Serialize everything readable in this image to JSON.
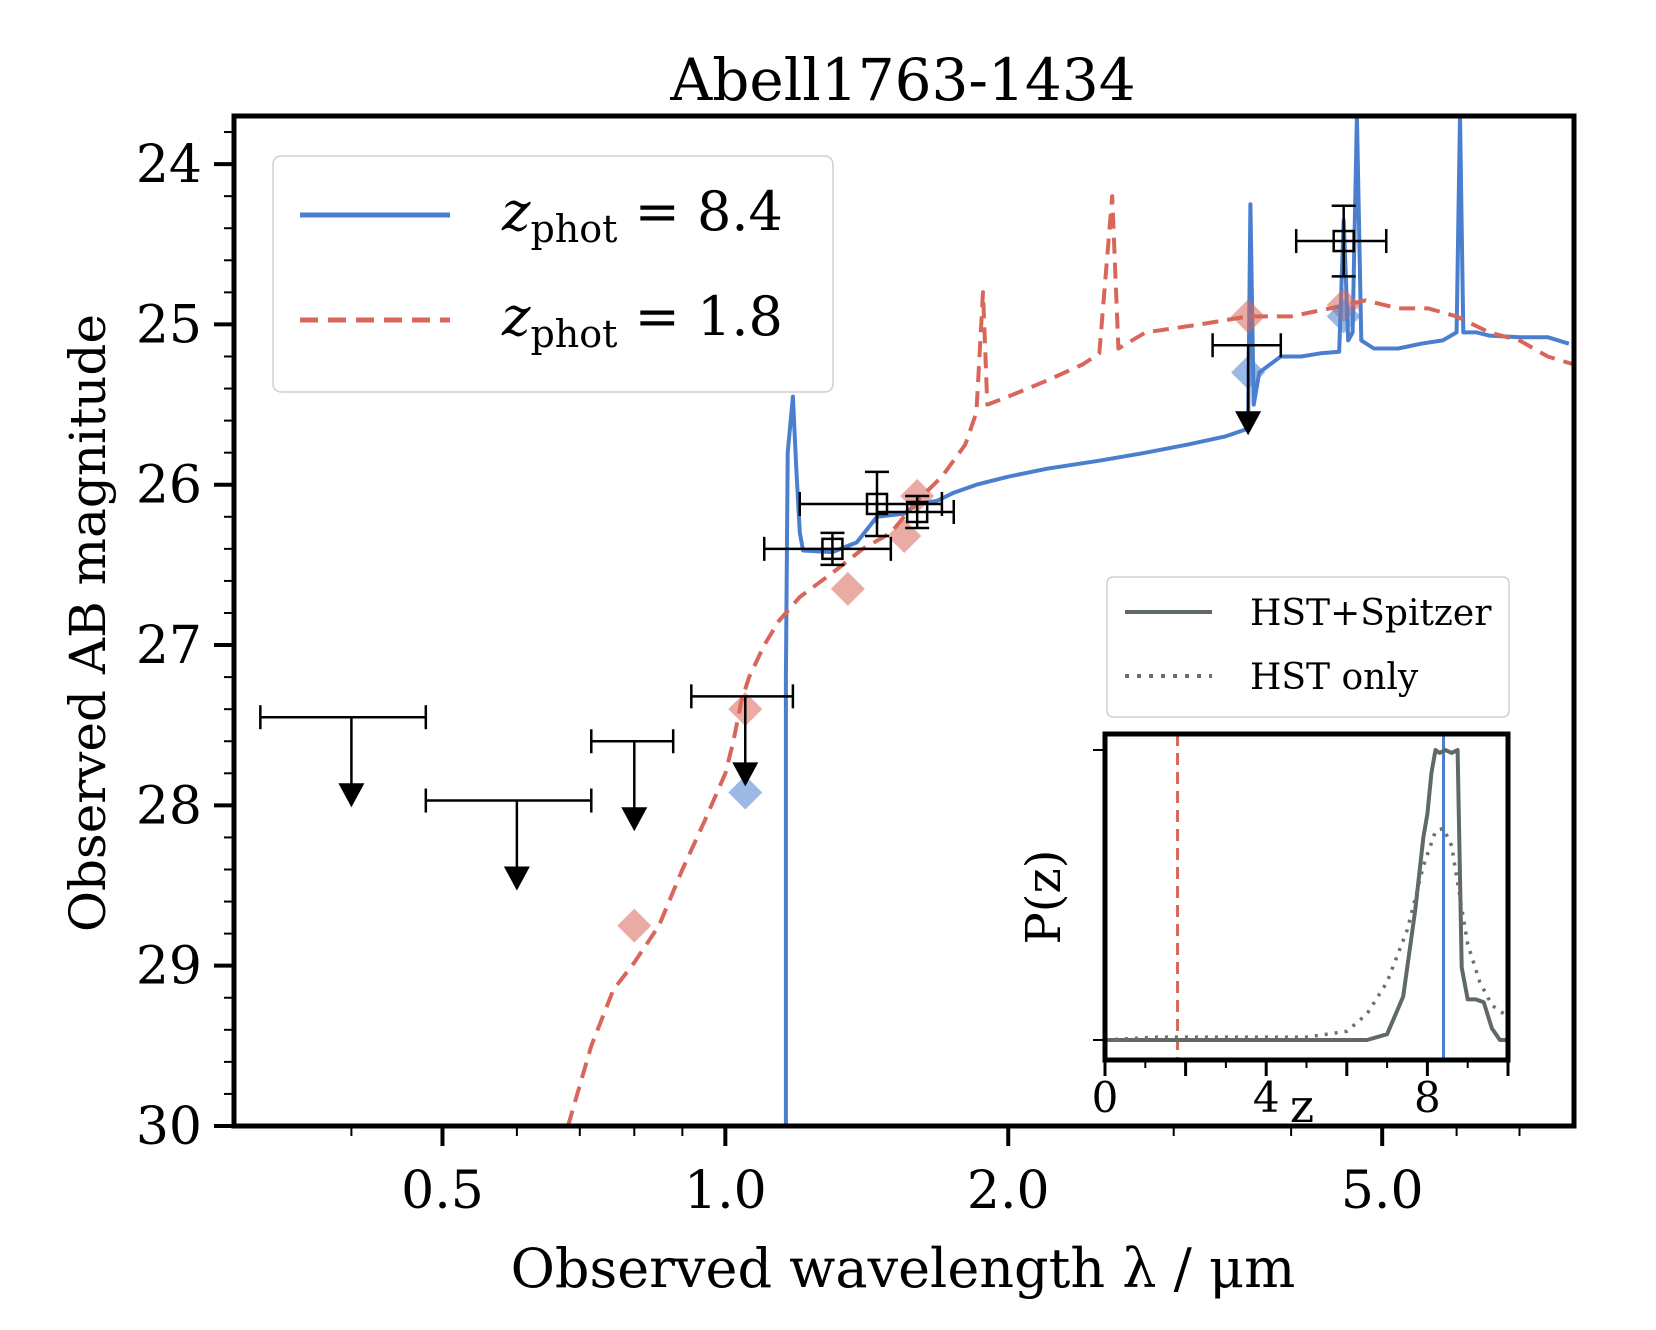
{
  "chart_data": [
    {
      "type": "line",
      "title": "Abell1763-1434",
      "xlabel": "Observed wavelength λ / μm",
      "ylabel": "Observed AB magnitude",
      "x_scale": "log",
      "xlim": [
        0.3,
        8.0
      ],
      "ylim": [
        30,
        23.7
      ],
      "y_inverted": true,
      "x_ticks": [
        "0.5",
        "1.0",
        "2.0",
        "5.0"
      ],
      "y_ticks": [
        "24",
        "25",
        "26",
        "27",
        "28",
        "29",
        "30"
      ],
      "legend": {
        "placement": "top-left",
        "entries": [
          {
            "prefix": "z",
            "sub": "phot",
            "rest": " = 8.4"
          },
          {
            "prefix": "z",
            "sub": "phot",
            "rest": " = 1.8"
          }
        ]
      },
      "series": [
        {
          "color": "#4a7fcf",
          "style": "solid",
          "points": [
            [
              1.16,
              30.0
            ],
            [
              1.16,
              27.2
            ],
            [
              1.165,
              25.8
            ],
            [
              1.18,
              25.45
            ],
            [
              1.19,
              25.9
            ],
            [
              1.2,
              26.3
            ],
            [
              1.21,
              26.41
            ],
            [
              1.3,
              26.42
            ],
            [
              1.38,
              26.36
            ],
            [
              1.45,
              26.2
            ],
            [
              1.55,
              26.18
            ],
            [
              1.6,
              26.12
            ],
            [
              1.68,
              26.1
            ],
            [
              1.75,
              26.05
            ],
            [
              1.85,
              26.0
            ],
            [
              2.0,
              25.95
            ],
            [
              2.2,
              25.9
            ],
            [
              2.5,
              25.85
            ],
            [
              2.8,
              25.8
            ],
            [
              3.1,
              25.75
            ],
            [
              3.4,
              25.7
            ],
            [
              3.6,
              25.65
            ],
            [
              3.62,
              24.25
            ],
            [
              3.65,
              25.5
            ],
            [
              3.7,
              25.3
            ],
            [
              3.9,
              25.2
            ],
            [
              4.1,
              25.2
            ],
            [
              4.3,
              25.18
            ],
            [
              4.5,
              25.17
            ],
            [
              4.55,
              24.35
            ],
            [
              4.6,
              25.1
            ],
            [
              4.65,
              25.05
            ],
            [
              4.7,
              23.7
            ],
            [
              4.75,
              25.1
            ],
            [
              4.9,
              25.15
            ],
            [
              5.2,
              25.15
            ],
            [
              5.5,
              25.12
            ],
            [
              5.8,
              25.1
            ],
            [
              6.0,
              25.05
            ],
            [
              6.05,
              23.7
            ],
            [
              6.1,
              25.05
            ],
            [
              6.3,
              25.05
            ],
            [
              6.5,
              25.07
            ],
            [
              7.0,
              25.08
            ],
            [
              7.5,
              25.08
            ],
            [
              7.9,
              25.12
            ]
          ]
        },
        {
          "color": "#d9665a",
          "style": "dashed",
          "points": [
            [
              0.68,
              30.0
            ],
            [
              0.72,
              29.5
            ],
            [
              0.76,
              29.15
            ],
            [
              0.8,
              28.98
            ],
            [
              0.85,
              28.75
            ],
            [
              0.9,
              28.4
            ],
            [
              0.95,
              28.1
            ],
            [
              1.0,
              27.8
            ],
            [
              1.02,
              27.6
            ],
            [
              1.04,
              27.35
            ],
            [
              1.06,
              27.2
            ],
            [
              1.1,
              27.0
            ],
            [
              1.14,
              26.85
            ],
            [
              1.2,
              26.7
            ],
            [
              1.3,
              26.55
            ],
            [
              1.4,
              26.4
            ],
            [
              1.5,
              26.3
            ],
            [
              1.6,
              26.1
            ],
            [
              1.7,
              25.95
            ],
            [
              1.8,
              25.75
            ],
            [
              1.85,
              25.55
            ],
            [
              1.88,
              24.8
            ],
            [
              1.9,
              25.5
            ],
            [
              2.0,
              25.45
            ],
            [
              2.2,
              25.35
            ],
            [
              2.4,
              25.25
            ],
            [
              2.5,
              25.18
            ],
            [
              2.58,
              24.2
            ],
            [
              2.62,
              25.15
            ],
            [
              2.8,
              25.05
            ],
            [
              3.2,
              25.0
            ],
            [
              3.6,
              24.95
            ],
            [
              4.0,
              24.95
            ],
            [
              4.4,
              24.9
            ],
            [
              4.8,
              24.85
            ],
            [
              5.2,
              24.9
            ],
            [
              5.6,
              24.9
            ],
            [
              6.0,
              24.95
            ],
            [
              6.5,
              25.05
            ],
            [
              7.0,
              25.1
            ],
            [
              7.5,
              25.2
            ],
            [
              8.0,
              25.25
            ]
          ]
        }
      ],
      "observations": [
        {
          "x": 1.3,
          "y": 26.4,
          "xerr": 0.2,
          "yerr": 0.1
        },
        {
          "x": 1.45,
          "y": 26.12,
          "xerr": 0.25,
          "yerr": 0.2
        },
        {
          "x": 1.6,
          "y": 26.17,
          "xerr": 0.15,
          "yerr": 0.1
        },
        {
          "x": 4.55,
          "y": 24.48,
          "xerr": 0.5,
          "yerr": 0.22
        }
      ],
      "upper_limits": [
        {
          "x": 0.4,
          "y": 27.45,
          "xerr": 0.08
        },
        {
          "x": 0.6,
          "y": 27.97,
          "xerr": 0.12
        },
        {
          "x": 0.8,
          "y": 27.6,
          "xerr": 0.08
        },
        {
          "x": 1.05,
          "y": 27.32,
          "xerr": 0.13
        },
        {
          "x": 3.6,
          "y": 25.13,
          "xerr": 0.3
        }
      ],
      "model_points_8_4": [
        [
          1.05,
          27.92
        ],
        [
          3.6,
          25.3
        ],
        [
          4.55,
          24.95
        ]
      ],
      "model_points_1_8": [
        [
          0.8,
          28.75
        ],
        [
          1.05,
          27.4
        ],
        [
          1.35,
          26.65
        ],
        [
          1.55,
          26.32
        ],
        [
          1.6,
          26.07
        ],
        [
          3.6,
          24.95
        ],
        [
          4.55,
          24.88
        ]
      ]
    },
    {
      "type": "line",
      "title": "",
      "xlabel": "z",
      "ylabel": "P(z)",
      "xlim": [
        0,
        10
      ],
      "x_ticks": [
        "0",
        "4",
        "8"
      ],
      "legend": {
        "placement": "above",
        "entries": [
          "HST+Spitzer",
          "HST only"
        ]
      },
      "markers": [
        {
          "label": "z = 8.4",
          "x": 8.4,
          "color": "#4a7fcf"
        },
        {
          "label": "z = 1.8",
          "x": 1.8,
          "color": "#d9665a"
        }
      ],
      "series": [
        {
          "name": "HST+Spitzer",
          "color": "#5f6a68",
          "style": "solid",
          "points": [
            [
              0,
              0.0
            ],
            [
              6.5,
              0.0
            ],
            [
              7.0,
              0.02
            ],
            [
              7.4,
              0.15
            ],
            [
              7.7,
              0.45
            ],
            [
              7.9,
              0.7
            ],
            [
              8.0,
              0.78
            ],
            [
              8.1,
              0.92
            ],
            [
              8.2,
              1.0
            ],
            [
              8.3,
              0.99
            ],
            [
              8.45,
              1.0
            ],
            [
              8.6,
              0.99
            ],
            [
              8.75,
              1.0
            ],
            [
              8.85,
              0.25
            ],
            [
              9.0,
              0.14
            ],
            [
              9.2,
              0.14
            ],
            [
              9.4,
              0.13
            ],
            [
              9.6,
              0.04
            ],
            [
              9.8,
              0.0
            ],
            [
              10.0,
              0.0
            ]
          ]
        },
        {
          "name": "HST only",
          "color": "#6e6e6e",
          "style": "dotted",
          "points": [
            [
              0,
              0.0
            ],
            [
              1.3,
              0.01
            ],
            [
              5.0,
              0.01
            ],
            [
              6.0,
              0.03
            ],
            [
              6.5,
              0.09
            ],
            [
              7.0,
              0.2
            ],
            [
              7.5,
              0.38
            ],
            [
              7.9,
              0.6
            ],
            [
              8.2,
              0.72
            ],
            [
              8.4,
              0.73
            ],
            [
              8.6,
              0.67
            ],
            [
              8.8,
              0.5
            ],
            [
              9.0,
              0.33
            ],
            [
              9.3,
              0.2
            ],
            [
              9.6,
              0.12
            ],
            [
              10.0,
              0.08
            ]
          ]
        }
      ]
    }
  ]
}
